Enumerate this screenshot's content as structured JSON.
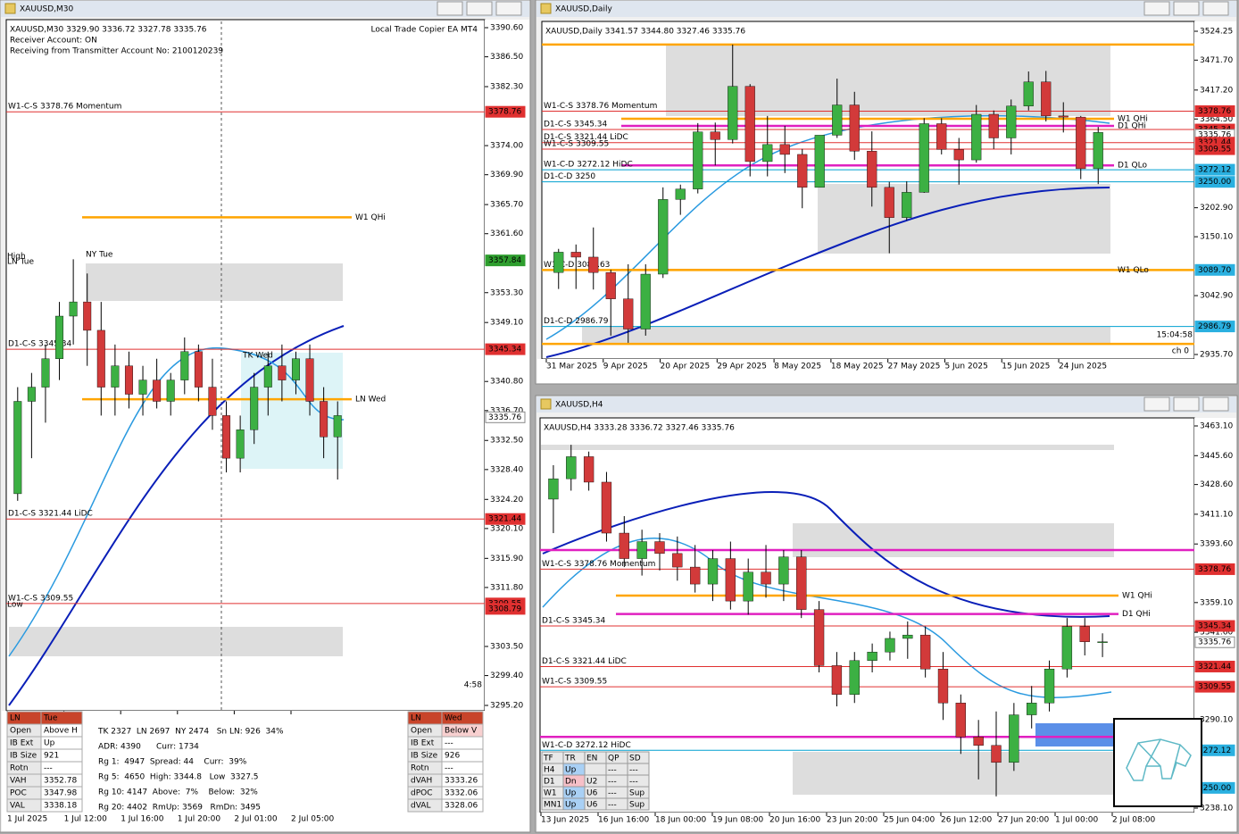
{
  "windows": [
    {
      "title": "XAUUSD,M30",
      "header": [
        "XAUUSD,M30  3329.90 3336.72 3327.78 3335.76",
        "Receiver Account: ON",
        "Receiving from Transmitter Account No: 2100120239"
      ],
      "ea": "Local Trade Copier EA MT4",
      "yticks": [
        "3390.60",
        "3386.50",
        "3382.30",
        "3374.00",
        "3369.90",
        "3365.70",
        "3361.60",
        "3353.30",
        "3349.10",
        "3340.80",
        "3336.70",
        "3332.50",
        "3328.40",
        "3324.20",
        "3320.10",
        "3315.90",
        "3311.80",
        "3303.50",
        "3299.40",
        "3295.20"
      ],
      "xticks": [
        "1 Jul 2025",
        "1 Jul 12:00",
        "1 Jul 16:00",
        "1 Jul 20:00",
        "2 Jul 01:00",
        "2 Jul 05:00"
      ],
      "levels": [
        {
          "label": "W1-C-S 3378.76 Momentum",
          "price": 3378.76,
          "color": "#e03030"
        },
        {
          "label": "W1 QHi",
          "price": 3363.9,
          "color": "#ffa500",
          "align": "right"
        },
        {
          "label": "D1-C-S 3345.34",
          "price": 3345.34,
          "color": "#e03030"
        },
        {
          "label": "LN Wed",
          "price": 3338.3,
          "color": "#ffa500",
          "align": "right"
        },
        {
          "label": "D1-C-S 3321.44 LiDC",
          "price": 3321.44,
          "color": "#e03030"
        },
        {
          "label": "W1-C-S 3309.55",
          "price": 3309.55,
          "color": "#e03030"
        }
      ],
      "tags": [
        {
          "text": "3378.76",
          "bg": "#e03030"
        },
        {
          "text": "3357.84",
          "bg": "#2e9e2e"
        },
        {
          "text": "3345.34",
          "bg": "#e03030"
        },
        {
          "text": "3335.76",
          "bg": "#ffffff"
        },
        {
          "text": "3321.44",
          "bg": "#e03030"
        },
        {
          "text": "3309.55",
          "bg": "#e03030"
        },
        {
          "text": "3308.79",
          "bg": "#e03030"
        }
      ],
      "notes": [
        "High",
        "LN Tue",
        "NY Tue",
        "TK Wed",
        "Low"
      ],
      "timer": "4:58",
      "candles": [
        [
          3325,
          3340,
          3324,
          3338
        ],
        [
          3338,
          3342,
          3330,
          3340
        ],
        [
          3340,
          3346,
          3335,
          3344
        ],
        [
          3344,
          3352,
          3341,
          3350
        ],
        [
          3350,
          3358,
          3346,
          3352
        ],
        [
          3352,
          3356,
          3343,
          3348
        ],
        [
          3348,
          3352,
          3336,
          3340
        ],
        [
          3340,
          3346,
          3336,
          3343
        ],
        [
          3343,
          3345,
          3337,
          3339
        ],
        [
          3339,
          3343,
          3336,
          3341
        ],
        [
          3341,
          3344,
          3337,
          3338
        ],
        [
          3338,
          3342,
          3336,
          3341
        ],
        [
          3341,
          3347,
          3339,
          3345
        ],
        [
          3345,
          3346,
          3338,
          3340
        ],
        [
          3340,
          3344,
          3334,
          3336
        ],
        [
          3336,
          3338,
          3328,
          3330
        ],
        [
          3330,
          3336,
          3328,
          3334
        ],
        [
          3334,
          3342,
          3332,
          3340
        ],
        [
          3340,
          3345,
          3336,
          3343
        ],
        [
          3343,
          3346,
          3338,
          3341
        ],
        [
          3341,
          3345,
          3339,
          3344
        ],
        [
          3344,
          3346,
          3336,
          3338
        ],
        [
          3338,
          3340,
          3330,
          3333
        ],
        [
          3333,
          3338,
          3327,
          3336
        ]
      ]
    },
    {
      "title": "XAUUSD,Daily",
      "header": [
        "XAUUSD,Daily  3341.57 3344.80 3327.46 3335.76"
      ],
      "yticks": [
        "3524.25",
        "3471.70",
        "3417.20",
        "3364.50",
        "3202.90",
        "3150.10",
        "3042.90",
        "2935.70"
      ],
      "xticks": [
        "31 Mar 2025",
        "9 Apr 2025",
        "20 Apr 2025",
        "29 Apr 2025",
        "8 May 2025",
        "18 May 2025",
        "27 May 2025",
        "5 Jun 2025",
        "15 Jun 2025",
        "24 Jun 2025"
      ],
      "levels": [
        {
          "price": 3500,
          "color": "#ffa500"
        },
        {
          "label": "W1-C-S 3378.76 Momentum",
          "price": 3378.76,
          "color": "#e03030"
        },
        {
          "label": "W1 QHi",
          "price": 3365,
          "color": "#ffa500",
          "align": "right"
        },
        {
          "label": "D1 QHi",
          "price": 3352,
          "color": "#e020c0",
          "align": "right"
        },
        {
          "label": "D1-C-S 3345.34",
          "price": 3345.34,
          "color": "#e03030"
        },
        {
          "label": "D1-C-S 3321.44 LiDC",
          "price": 3321.44,
          "color": "#e03030"
        },
        {
          "label": "W1-C-S 3309.55",
          "price": 3309.55,
          "color": "#e03030"
        },
        {
          "label": "D1 QLo",
          "price": 3280,
          "color": "#e020c0",
          "align": "right"
        },
        {
          "label": "W1-C-D 3272.12 HiDC",
          "price": 3272.12,
          "color": "#00a0d0"
        },
        {
          "label": "D1-C-D 3250",
          "price": 3250,
          "color": "#00a0d0"
        },
        {
          "label": "W1-C-D 3089.63",
          "price": 3089.63,
          "color": "#ffa500"
        },
        {
          "label": "W1 QLo",
          "price": 3089.7,
          "color": "#ffa500",
          "align": "right"
        },
        {
          "label": "D1-C-D 2986.79",
          "price": 2986.79,
          "color": "#00a0d0"
        },
        {
          "price": 2955,
          "color": "#ffa500"
        }
      ],
      "tags": [
        {
          "text": "3378.76",
          "bg": "#e03030"
        },
        {
          "text": "3345.34",
          "bg": "#e03030"
        },
        {
          "text": "3335.76",
          "bg": "#ffffff"
        },
        {
          "text": "3321.44",
          "bg": "#e03030"
        },
        {
          "text": "3309.55",
          "bg": "#e03030"
        },
        {
          "text": "3272.12",
          "bg": "#2ab0e0"
        },
        {
          "text": "3250.00",
          "bg": "#2ab0e0"
        },
        {
          "text": "3089.70",
          "bg": "#2ab0e0"
        },
        {
          "text": "2986.79",
          "bg": "#2ab0e0"
        }
      ],
      "timer": "15:04:58",
      "channel": "ch 0",
      "candles": [
        [
          3085,
          3128,
          3055,
          3122
        ],
        [
          3122,
          3136,
          3055,
          3113
        ],
        [
          3113,
          3167,
          3054,
          3085
        ],
        [
          3085,
          3090,
          2970,
          3037
        ],
        [
          3037,
          3100,
          2957,
          2982
        ],
        [
          2982,
          3100,
          2970,
          3082
        ],
        [
          3082,
          3240,
          3075,
          3218
        ],
        [
          3218,
          3245,
          3190,
          3237
        ],
        [
          3237,
          3357,
          3229,
          3341
        ],
        [
          3341,
          3358,
          3280,
          3327
        ],
        [
          3327,
          3500,
          3320,
          3424
        ],
        [
          3424,
          3428,
          3260,
          3287
        ],
        [
          3287,
          3370,
          3260,
          3318
        ],
        [
          3318,
          3352,
          3266,
          3300
        ],
        [
          3300,
          3310,
          3202,
          3240
        ],
        [
          3240,
          3330,
          3240,
          3335
        ],
        [
          3335,
          3438,
          3330,
          3390
        ],
        [
          3390,
          3414,
          3290,
          3306
        ],
        [
          3306,
          3342,
          3205,
          3240
        ],
        [
          3240,
          3250,
          3120,
          3185
        ],
        [
          3185,
          3251,
          3180,
          3231
        ],
        [
          3231,
          3366,
          3230,
          3356
        ],
        [
          3356,
          3366,
          3300,
          3309
        ],
        [
          3309,
          3330,
          3245,
          3290
        ],
        [
          3290,
          3390,
          3285,
          3373
        ],
        [
          3373,
          3380,
          3310,
          3330
        ],
        [
          3330,
          3400,
          3300,
          3388
        ],
        [
          3388,
          3451,
          3380,
          3432
        ],
        [
          3432,
          3452,
          3360,
          3370
        ],
        [
          3370,
          3395,
          3340,
          3368
        ],
        [
          3368,
          3370,
          3255,
          3274
        ],
        [
          3274,
          3350,
          3246,
          3340
        ]
      ]
    },
    {
      "title": "XAUUSD,H4",
      "header": [
        "XAUUSD,H4  3333.28 3336.72 3327.46 3335.76"
      ],
      "yticks": [
        "3463.10",
        "3445.60",
        "3428.60",
        "3411.10",
        "3393.60",
        "3359.10",
        "3341.60",
        "3290.10",
        "3238.10"
      ],
      "xticks": [
        "13 Jun 2025",
        "16 Jun 16:00",
        "18 Jun 00:00",
        "19 Jun 08:00",
        "20 Jun 16:00",
        "23 Jun 20:00",
        "25 Jun 04:00",
        "26 Jun 12:00",
        "27 Jun 20:00",
        "1 Jul 00:00",
        "2 Jul 08:00"
      ],
      "levels": [
        {
          "price": 3390,
          "color": "#e020c0"
        },
        {
          "label": "W1-C-S 3378.76 Momentum",
          "price": 3378.76,
          "color": "#e03030"
        },
        {
          "label": "W1 QHi",
          "price": 3363.2,
          "color": "#ffa500",
          "align": "right"
        },
        {
          "label": "D1 QHi",
          "price": 3352.4,
          "color": "#e020c0",
          "align": "right"
        },
        {
          "label": "D1-C-S 3345.34",
          "price": 3345.34,
          "color": "#e03030"
        },
        {
          "label": "D1-C-S 3321.44 LiDC",
          "price": 3321.44,
          "color": "#e03030"
        },
        {
          "label": "W1-C-S 3309.55",
          "price": 3309.55,
          "color": "#e03030"
        },
        {
          "price": 3280,
          "color": "#e020c0"
        },
        {
          "label": "W1-C-D 3272.12 HiDC",
          "price": 3272.12,
          "color": "#00a0d0"
        }
      ],
      "tags": [
        {
          "text": "3378.76",
          "bg": "#e03030"
        },
        {
          "text": "3345.34",
          "bg": "#e03030"
        },
        {
          "text": "3335.76",
          "bg": "#ffffff"
        },
        {
          "text": "3321.44",
          "bg": "#e03030"
        },
        {
          "text": "3309.55",
          "bg": "#e03030"
        },
        {
          "text": "3272.12",
          "bg": "#2ab0e0"
        },
        {
          "text": "3250.00",
          "bg": "#2ab0e0"
        }
      ],
      "candles": [
        [
          3420,
          3440,
          3400,
          3432
        ],
        [
          3432,
          3452,
          3425,
          3445
        ],
        [
          3445,
          3448,
          3425,
          3430
        ],
        [
          3430,
          3436,
          3395,
          3400
        ],
        [
          3400,
          3410,
          3380,
          3385
        ],
        [
          3385,
          3402,
          3375,
          3395
        ],
        [
          3395,
          3400,
          3378,
          3388
        ],
        [
          3388,
          3398,
          3372,
          3380
        ],
        [
          3380,
          3393,
          3365,
          3370
        ],
        [
          3370,
          3390,
          3360,
          3385
        ],
        [
          3385,
          3395,
          3355,
          3360
        ],
        [
          3360,
          3385,
          3352,
          3377
        ],
        [
          3377,
          3393,
          3362,
          3370
        ],
        [
          3370,
          3390,
          3360,
          3386
        ],
        [
          3386,
          3390,
          3350,
          3355
        ],
        [
          3355,
          3360,
          3318,
          3322
        ],
        [
          3322,
          3330,
          3298,
          3305
        ],
        [
          3305,
          3330,
          3300,
          3325
        ],
        [
          3325,
          3335,
          3318,
          3330
        ],
        [
          3330,
          3342,
          3325,
          3338
        ],
        [
          3338,
          3348,
          3326,
          3340
        ],
        [
          3340,
          3345,
          3315,
          3320
        ],
        [
          3320,
          3330,
          3290,
          3300
        ],
        [
          3300,
          3305,
          3270,
          3280
        ],
        [
          3280,
          3290,
          3255,
          3275
        ],
        [
          3275,
          3295,
          3245,
          3265
        ],
        [
          3265,
          3300,
          3260,
          3293
        ],
        [
          3293,
          3310,
          3285,
          3300
        ],
        [
          3300,
          3325,
          3295,
          3320
        ],
        [
          3320,
          3350,
          3315,
          3345
        ],
        [
          3345,
          3350,
          3328,
          3336
        ],
        [
          3336,
          3341,
          3327,
          3336
        ]
      ]
    }
  ],
  "m30_panel": {
    "left": [
      [
        "LN",
        "Tue"
      ],
      [
        "Open",
        "Above H"
      ],
      [
        "IB Ext",
        "Up"
      ],
      [
        "IB Size",
        "921"
      ],
      [
        "Rotn",
        "---"
      ],
      [
        "VAH",
        "3352.78"
      ],
      [
        "POC",
        "3347.98"
      ],
      [
        "VAL",
        "3338.18"
      ]
    ],
    "stats": [
      "TK 2327  LN 2697  NY 2474   Sn LN: 926  34%",
      "ADR: 4390      Curr: 1734",
      "Rg 1:  4947  Spread: 44    Curr:  39%",
      "Rg 5:  4650  High: 3344.8   Low  3327.5",
      "Rg 10: 4147  Above:  7%    Below:  32%",
      "Rg 20: 4402  RmUp: 3569   RmDn: 3495"
    ],
    "right": [
      [
        "LN",
        "Wed"
      ],
      [
        "Open",
        "Below V"
      ],
      [
        "IB Ext",
        "---"
      ],
      [
        "IB Size",
        "926"
      ],
      [
        "Rotn",
        "---"
      ],
      [
        "dVAH",
        "3333.26"
      ],
      [
        "dPOC",
        "3332.06"
      ],
      [
        "dVAL",
        "3328.06"
      ]
    ]
  },
  "h4_table": {
    "header": {
      "tf": "TF",
      "tr": "TR",
      "en": "EN",
      "qp": "QP",
      "sd": "SD"
    },
    "rows": [
      {
        "tf": "H4",
        "tr": "Up",
        "qp": "---",
        "sd": "---"
      },
      {
        "tf": "D1",
        "tr": "Dn",
        "en": "U2",
        "qp": "---",
        "sd": "---"
      },
      {
        "tf": "W1",
        "tr": "Up",
        "en": "U6",
        "qp": "---",
        "sd": "Sup"
      },
      {
        "tf": "MN1",
        "tr": "Up",
        "en": "U6",
        "qp": "---",
        "sd": "Sup"
      }
    ]
  }
}
